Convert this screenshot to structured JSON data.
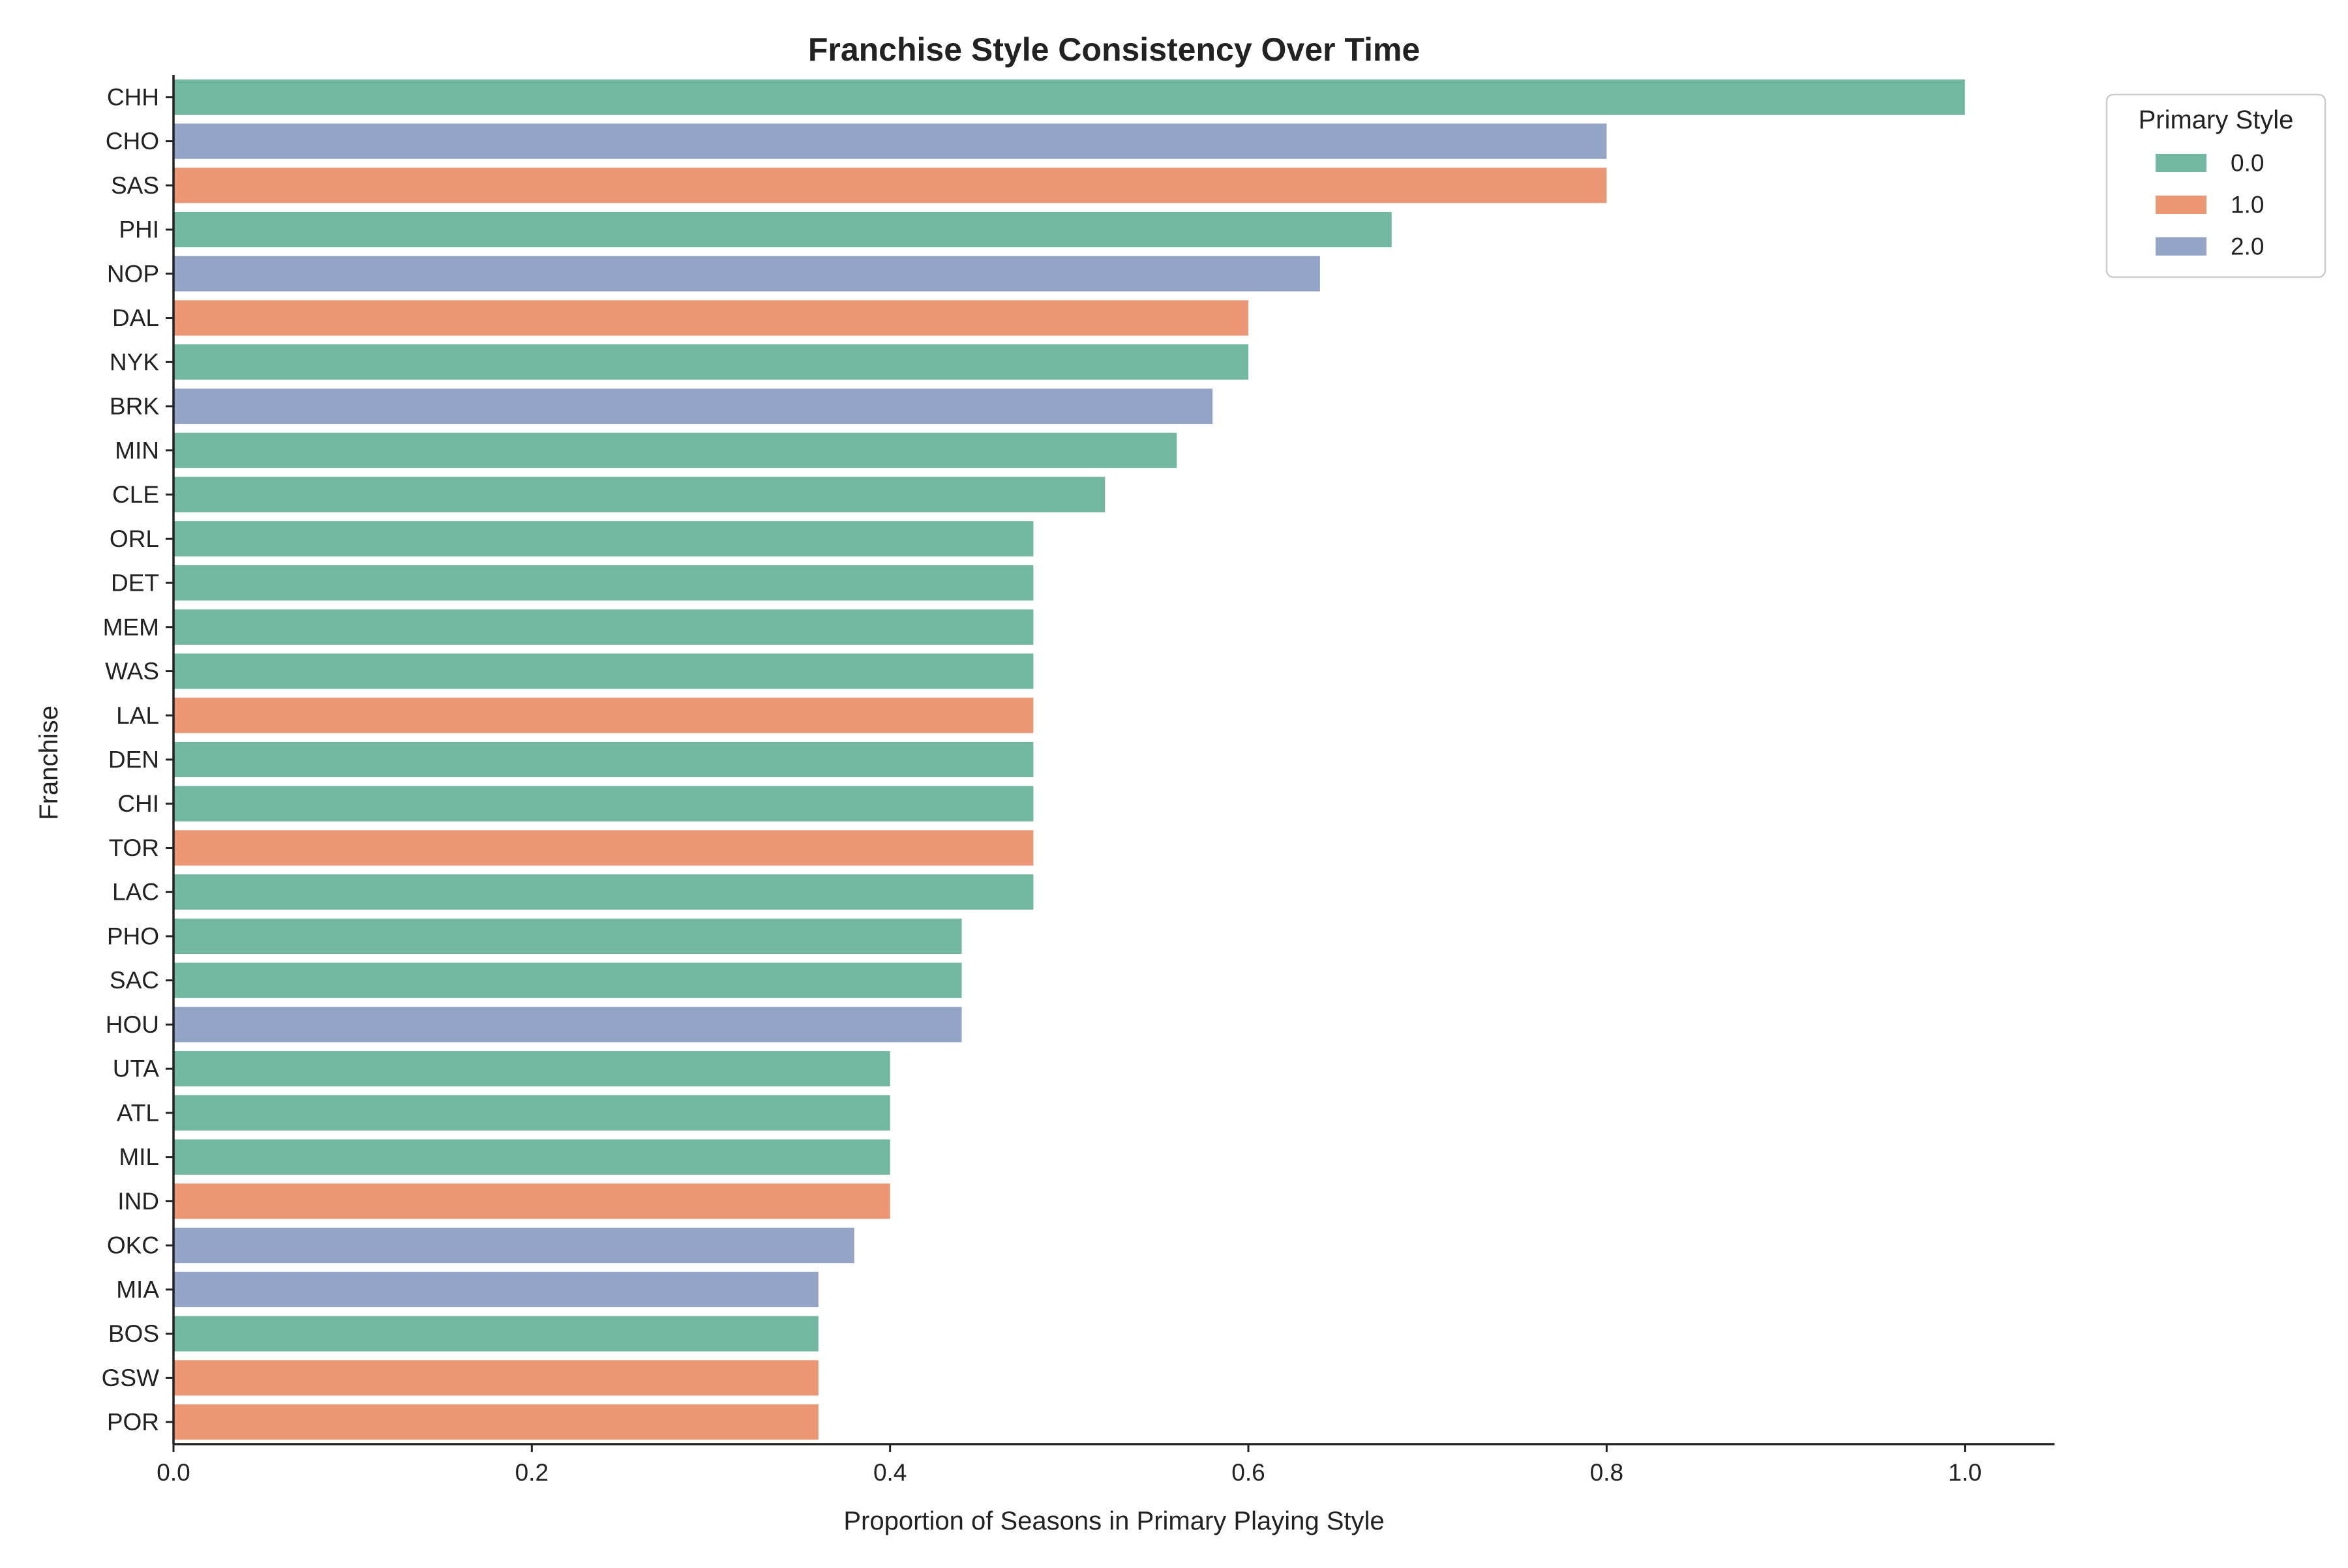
{
  "chart_data": {
    "type": "bar",
    "orientation": "horizontal",
    "title": "Franchise Style Consistency Over Time",
    "xlabel": "Proportion of Seasons in Primary Playing Style",
    "ylabel": "Franchise",
    "xlim": [
      0,
      1.05
    ],
    "xticks": [
      {
        "value": 0.0,
        "label": "0.0"
      },
      {
        "value": 0.2,
        "label": "0.2"
      },
      {
        "value": 0.4,
        "label": "0.4"
      },
      {
        "value": 0.6,
        "label": "0.6"
      },
      {
        "value": 0.8,
        "label": "0.8"
      },
      {
        "value": 1.0,
        "label": "1.0"
      }
    ],
    "grid": false,
    "legend": {
      "title": "Primary Style",
      "placement": "top-right-outside",
      "entries": [
        {
          "label": "0.0",
          "color": "#72b79f"
        },
        {
          "label": "1.0",
          "color": "#eb9675"
        },
        {
          "label": "2.0",
          "color": "#94a4c7"
        }
      ]
    },
    "categories": [
      "CHH",
      "CHO",
      "SAS",
      "PHI",
      "NOP",
      "DAL",
      "NYK",
      "BRK",
      "MIN",
      "CLE",
      "ORL",
      "DET",
      "MEM",
      "WAS",
      "LAL",
      "DEN",
      "CHI",
      "TOR",
      "LAC",
      "PHO",
      "SAC",
      "HOU",
      "UTA",
      "ATL",
      "MIL",
      "IND",
      "OKC",
      "MIA",
      "BOS",
      "GSW",
      "POR"
    ],
    "values": [
      1.0,
      0.8,
      0.8,
      0.68,
      0.64,
      0.6,
      0.6,
      0.58,
      0.56,
      0.52,
      0.48,
      0.48,
      0.48,
      0.48,
      0.48,
      0.48,
      0.48,
      0.48,
      0.48,
      0.44,
      0.44,
      0.44,
      0.4,
      0.4,
      0.4,
      0.4,
      0.38,
      0.36,
      0.36,
      0.36,
      0.36
    ],
    "style": [
      0,
      2,
      1,
      0,
      2,
      1,
      0,
      2,
      0,
      0,
      0,
      0,
      0,
      0,
      1,
      0,
      0,
      1,
      0,
      0,
      0,
      2,
      0,
      0,
      0,
      1,
      2,
      2,
      0,
      1,
      1
    ]
  }
}
